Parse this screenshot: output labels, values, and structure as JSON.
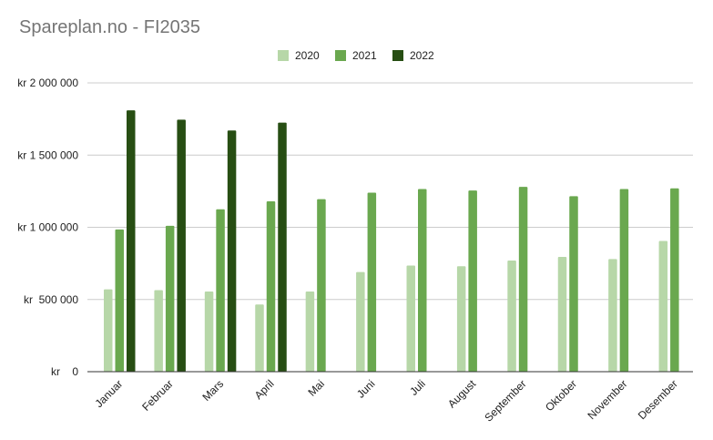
{
  "title": "Spareplan.no - FI2035",
  "chart_data": {
    "type": "bar",
    "title": "Spareplan.no - FI2035",
    "categories": [
      "Januar",
      "Februar",
      "Mars",
      "April",
      "Mai",
      "Juni",
      "Juli",
      "August",
      "September",
      "Oktober",
      "November",
      "Desember"
    ],
    "series": [
      {
        "name": "2020",
        "color": "#b7d7a8",
        "values": [
          570000,
          565000,
          555000,
          465000,
          555000,
          690000,
          735000,
          730000,
          770000,
          795000,
          780000,
          905000
        ]
      },
      {
        "name": "2021",
        "color": "#6aa84f",
        "values": [
          985000,
          1010000,
          1125000,
          1180000,
          1195000,
          1240000,
          1265000,
          1255000,
          1280000,
          1215000,
          1265000,
          1270000
        ]
      },
      {
        "name": "2022",
        "color": "#274e13",
        "values": [
          1810000,
          1745000,
          1670000,
          1725000,
          null,
          null,
          null,
          null,
          null,
          null,
          null,
          null
        ]
      }
    ],
    "yticks": [
      "kr 2 000 000",
      "kr 1 500 000",
      "kr 1 000 000",
      "kr  500 000",
      "kr    0"
    ],
    "ylim": [
      0,
      2000000
    ],
    "grid": true,
    "legend_position": "top-center"
  }
}
